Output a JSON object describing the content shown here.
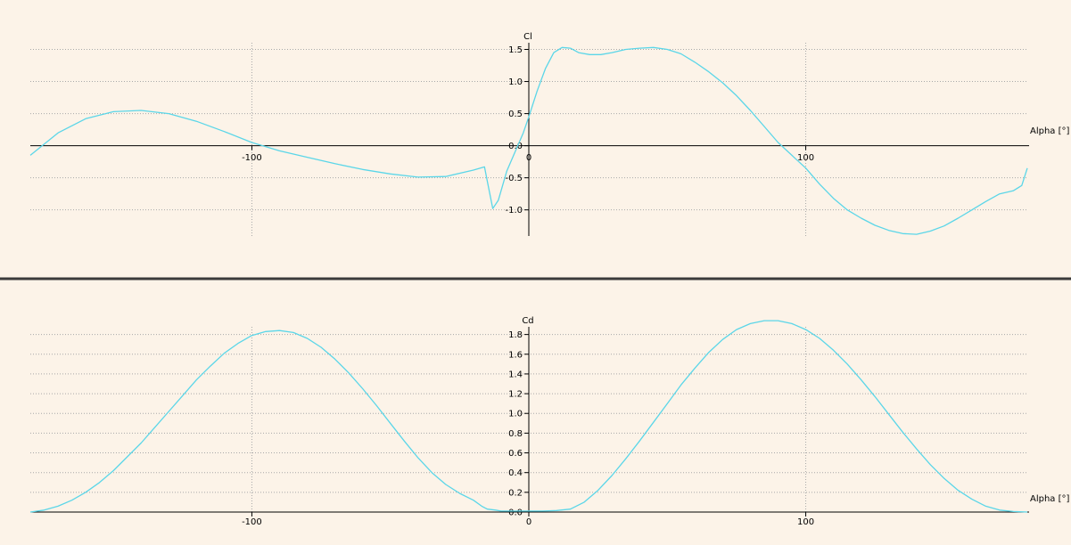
{
  "colors": {
    "background": "#fcf3e8",
    "axis": "#000000",
    "grid": "#a8a8a8",
    "curve": "#5bd6e8",
    "separator": "#3a3a3a"
  },
  "chart_data": [
    {
      "type": "line",
      "name": "cl-plot",
      "xlabel": "Alpha [°]",
      "ylabel": "Cl",
      "xlim": [
        -180,
        180
      ],
      "ylim": [
        -1.4,
        1.5
      ],
      "xticks": [
        -100,
        0,
        100
      ],
      "xtick_labels": [
        "-100",
        "0",
        "100"
      ],
      "yticks": [
        1.5,
        1.0,
        0.5,
        0.0,
        -0.5,
        -1.0
      ],
      "ytick_labels": [
        "1.5",
        "1.0",
        "0.5",
        "0.0",
        "-0.5",
        "-1.0"
      ],
      "grid": true,
      "series": [
        {
          "x": [
            -180,
            -170,
            -160,
            -150,
            -140,
            -130,
            -120,
            -110,
            -100,
            -90,
            -80,
            -70,
            -60,
            -50,
            -40,
            -30,
            -20,
            -16,
            -15,
            -13,
            -11,
            -8,
            -5,
            -2,
            0,
            3,
            6,
            9,
            12,
            15,
            18,
            22,
            26,
            30,
            35,
            40,
            45,
            50,
            55,
            60,
            65,
            70,
            75,
            80,
            85,
            90,
            95,
            100,
            105,
            110,
            115,
            120,
            125,
            130,
            135,
            140,
            145,
            150,
            155,
            160,
            165,
            170,
            175,
            178,
            180
          ],
          "y": [
            -0.15,
            0.2,
            0.42,
            0.53,
            0.55,
            0.5,
            0.38,
            0.22,
            0.05,
            -0.08,
            -0.18,
            -0.28,
            -0.37,
            -0.44,
            -0.49,
            -0.48,
            -0.38,
            -0.33,
            -0.55,
            -0.98,
            -0.85,
            -0.4,
            -0.1,
            0.2,
            0.45,
            0.85,
            1.2,
            1.45,
            1.53,
            1.52,
            1.45,
            1.42,
            1.42,
            1.45,
            1.5,
            1.52,
            1.53,
            1.5,
            1.43,
            1.3,
            1.15,
            0.98,
            0.78,
            0.55,
            0.3,
            0.05,
            -0.15,
            -0.35,
            -0.6,
            -0.82,
            -1.0,
            -1.13,
            -1.24,
            -1.32,
            -1.37,
            -1.38,
            -1.33,
            -1.25,
            -1.13,
            -1.0,
            -0.87,
            -0.75,
            -0.7,
            -0.62,
            -0.35
          ]
        }
      ]
    },
    {
      "type": "line",
      "name": "cd-plot",
      "xlabel": "Alpha [°]",
      "ylabel": "Cd",
      "xlim": [
        -180,
        180
      ],
      "ylim": [
        0,
        1.95
      ],
      "xticks": [
        -100,
        0,
        100
      ],
      "xtick_labels": [
        "-100",
        "0",
        "100"
      ],
      "yticks": [
        1.8,
        1.6,
        1.4,
        1.2,
        1.0,
        0.8,
        0.6,
        0.4,
        0.2,
        0.0
      ],
      "ytick_labels": [
        "1.8",
        "1.6",
        "1.4",
        "1.2",
        "1.0",
        "0.8",
        "0.6",
        "0.4",
        "0.2",
        "0.0"
      ],
      "grid": true,
      "series": [
        {
          "x": [
            -180,
            -175,
            -170,
            -165,
            -160,
            -155,
            -150,
            -145,
            -140,
            -135,
            -130,
            -125,
            -120,
            -115,
            -110,
            -105,
            -100,
            -95,
            -90,
            -85,
            -80,
            -75,
            -70,
            -65,
            -60,
            -55,
            -50,
            -45,
            -40,
            -35,
            -30,
            -25,
            -20,
            -17,
            -15,
            -12,
            -10,
            -5,
            0,
            5,
            10,
            15,
            20,
            25,
            30,
            35,
            40,
            45,
            50,
            55,
            60,
            65,
            70,
            75,
            80,
            85,
            90,
            95,
            100,
            105,
            110,
            115,
            120,
            125,
            130,
            135,
            140,
            145,
            150,
            155,
            160,
            165,
            170,
            175,
            180
          ],
          "y": [
            0.0,
            0.02,
            0.06,
            0.12,
            0.2,
            0.3,
            0.42,
            0.56,
            0.7,
            0.86,
            1.02,
            1.18,
            1.34,
            1.48,
            1.61,
            1.71,
            1.79,
            1.83,
            1.84,
            1.82,
            1.76,
            1.67,
            1.55,
            1.41,
            1.25,
            1.08,
            0.9,
            0.72,
            0.55,
            0.4,
            0.28,
            0.19,
            0.12,
            0.06,
            0.03,
            0.02,
            0.01,
            0.01,
            0.01,
            0.01,
            0.015,
            0.03,
            0.1,
            0.22,
            0.37,
            0.54,
            0.72,
            0.91,
            1.1,
            1.29,
            1.46,
            1.62,
            1.75,
            1.85,
            1.91,
            1.94,
            1.94,
            1.91,
            1.85,
            1.76,
            1.64,
            1.5,
            1.34,
            1.17,
            0.99,
            0.81,
            0.64,
            0.48,
            0.34,
            0.22,
            0.13,
            0.06,
            0.02,
            0.005,
            0.0
          ]
        }
      ]
    }
  ]
}
